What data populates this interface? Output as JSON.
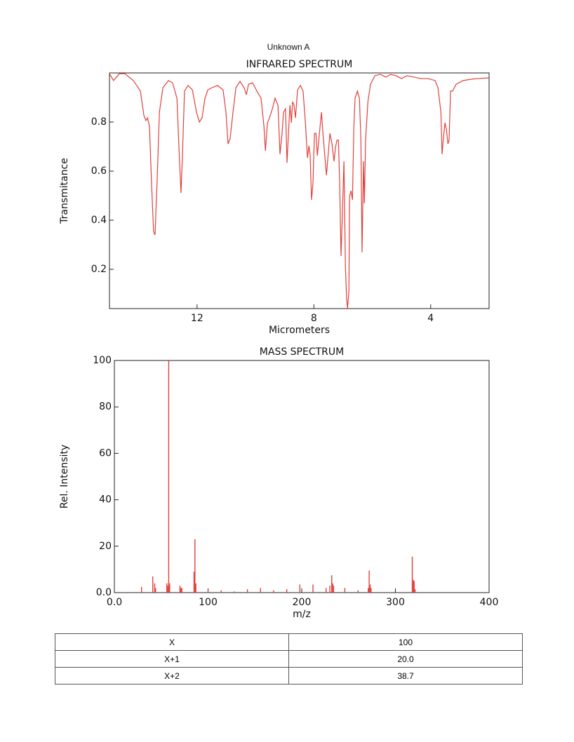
{
  "title": "Unknown A",
  "chart_data": [
    {
      "type": "line",
      "title": "INFRARED SPECTRUM",
      "xlabel": "Micrometers",
      "ylabel": "Transmitance",
      "color": "#e0403a",
      "xlim": [
        15,
        2
      ],
      "ylim": [
        0.04,
        1.0
      ],
      "xticks": [
        12,
        8,
        4
      ],
      "yticks": [
        0.2,
        0.4,
        0.6,
        0.8
      ],
      "x": [
        15.0,
        14.86,
        14.76,
        14.66,
        14.47,
        14.18,
        13.94,
        13.82,
        13.75,
        13.7,
        13.63,
        13.56,
        13.49,
        13.44,
        13.37,
        13.29,
        13.17,
        12.98,
        12.84,
        12.69,
        12.6,
        12.55,
        12.5,
        12.43,
        12.31,
        12.16,
        12.02,
        11.92,
        11.83,
        11.73,
        11.63,
        11.49,
        11.3,
        11.11,
        11.01,
        10.94,
        10.87,
        10.77,
        10.67,
        10.53,
        10.38,
        10.31,
        10.24,
        10.1,
        9.95,
        9.81,
        9.71,
        9.66,
        9.59,
        9.52,
        9.42,
        9.33,
        9.23,
        9.16,
        9.09,
        9.04,
        8.97,
        8.92,
        8.87,
        8.82,
        8.77,
        8.73,
        8.68,
        8.63,
        8.56,
        8.46,
        8.37,
        8.29,
        8.22,
        8.17,
        8.13,
        8.08,
        8.03,
        7.98,
        7.93,
        7.88,
        7.81,
        7.74,
        7.69,
        7.62,
        7.57,
        7.52,
        7.45,
        7.38,
        7.31,
        7.26,
        7.21,
        7.16,
        7.12,
        7.07,
        7.02,
        6.97,
        6.92,
        6.88,
        6.85,
        6.8,
        6.78,
        6.73,
        6.68,
        6.63,
        6.59,
        6.51,
        6.44,
        6.39,
        6.35,
        6.3,
        6.27,
        6.23,
        6.15,
        6.06,
        5.91,
        5.72,
        5.53,
        5.38,
        5.19,
        5.0,
        4.81,
        4.57,
        4.33,
        4.09,
        3.85,
        3.75,
        3.65,
        3.61,
        3.56,
        3.51,
        3.46,
        3.41,
        3.37,
        3.32,
        3.25,
        3.13,
        2.89,
        2.64,
        2.4,
        2.0
      ],
      "values": [
        0.997,
        0.969,
        0.983,
        0.997,
        0.997,
        0.969,
        0.926,
        0.826,
        0.806,
        0.817,
        0.783,
        0.554,
        0.354,
        0.34,
        0.554,
        0.84,
        0.94,
        0.969,
        0.96,
        0.897,
        0.64,
        0.511,
        0.669,
        0.926,
        0.949,
        0.931,
        0.84,
        0.8,
        0.817,
        0.897,
        0.931,
        0.94,
        0.949,
        0.931,
        0.84,
        0.711,
        0.731,
        0.84,
        0.94,
        0.966,
        0.937,
        0.911,
        0.954,
        0.96,
        0.926,
        0.897,
        0.783,
        0.683,
        0.797,
        0.817,
        0.854,
        0.897,
        0.869,
        0.669,
        0.754,
        0.84,
        0.854,
        0.634,
        0.754,
        0.869,
        0.797,
        0.883,
        0.869,
        0.817,
        0.931,
        0.949,
        0.926,
        0.797,
        0.654,
        0.703,
        0.669,
        0.483,
        0.554,
        0.754,
        0.754,
        0.663,
        0.754,
        0.84,
        0.754,
        0.654,
        0.583,
        0.654,
        0.754,
        0.711,
        0.64,
        0.697,
        0.726,
        0.726,
        0.569,
        0.254,
        0.44,
        0.64,
        0.211,
        0.083,
        0.04,
        0.111,
        0.497,
        0.52,
        0.483,
        0.783,
        0.897,
        0.926,
        0.897,
        0.726,
        0.269,
        0.64,
        0.469,
        0.726,
        0.883,
        0.954,
        0.989,
        0.994,
        0.983,
        0.994,
        0.989,
        0.977,
        0.989,
        0.983,
        0.977,
        0.977,
        0.969,
        0.94,
        0.84,
        0.669,
        0.74,
        0.797,
        0.769,
        0.711,
        0.726,
        0.926,
        0.926,
        0.954,
        0.969,
        0.974,
        0.977,
        0.98
      ]
    },
    {
      "type": "bar",
      "title": "MASS SPECTRUM",
      "xlabel": "m/z",
      "ylabel": "Rel. Intensity",
      "color": "#e0403a",
      "xlim": [
        0,
        400
      ],
      "ylim": [
        0,
        100
      ],
      "xticks": [
        {
          "value": 0,
          "label": "0.0"
        },
        100,
        200,
        300,
        400
      ],
      "yticks": [
        {
          "value": 0,
          "label": "0.0"
        },
        20,
        40,
        60,
        80,
        100
      ],
      "x": [
        29,
        41,
        43,
        44,
        56,
        57,
        58,
        59,
        70,
        71,
        72,
        85,
        86,
        87,
        100,
        114,
        128,
        142,
        156,
        170,
        184,
        198,
        212,
        226,
        230,
        232,
        233,
        234,
        246,
        260,
        271,
        272,
        273,
        274,
        318,
        319,
        320,
        321
      ],
      "values": [
        2.5,
        7,
        4,
        2,
        4,
        3,
        100,
        4,
        3,
        2,
        2,
        9,
        23,
        4,
        1,
        1,
        0.5,
        1.5,
        2,
        1,
        1.5,
        3.5,
        3.5,
        2,
        3,
        7.5,
        4,
        3,
        2,
        1,
        2,
        9.5,
        3.5,
        2,
        15.5,
        5.5,
        5,
        1.5
      ]
    }
  ],
  "table": {
    "rows": [
      [
        "X",
        "100"
      ],
      [
        "X+1",
        "20.0"
      ],
      [
        "X+2",
        "38.7"
      ]
    ]
  }
}
